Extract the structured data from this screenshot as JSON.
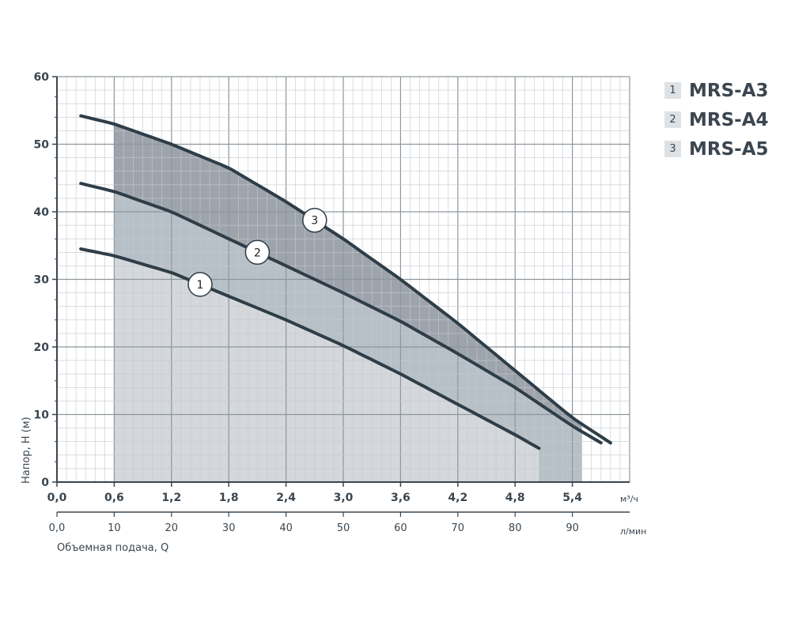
{
  "chart_data": {
    "type": "line",
    "xlabel": "Объемная подача, Q",
    "ylabel": "Напор, H (м)",
    "x_unit": "м³/ч",
    "x2_unit": "л/мин",
    "xlim": [
      0,
      6.0
    ],
    "ylim": [
      0,
      60
    ],
    "x_ticks": [
      "0,0",
      "0,6",
      "1,2",
      "1,8",
      "2,4",
      "3,0",
      "3,6",
      "4,2",
      "4,8",
      "5,4"
    ],
    "x2_ticks": [
      "0,0",
      "10",
      "20",
      "30",
      "40",
      "50",
      "60",
      "70",
      "80",
      "90"
    ],
    "y_ticks": [
      "0",
      "10",
      "20",
      "30",
      "40",
      "50",
      "60"
    ],
    "grid": true,
    "legend_position": "top-right",
    "series": [
      {
        "name": "MRS-A3",
        "number": "1",
        "color": "#2e3d47",
        "x": [
          0.25,
          0.6,
          1.2,
          1.8,
          2.4,
          3.0,
          3.6,
          4.2,
          4.8,
          5.05
        ],
        "y": [
          34.5,
          33.5,
          31.0,
          27.5,
          24.0,
          20.2,
          16.0,
          11.5,
          7.0,
          5.0
        ]
      },
      {
        "name": "MRS-A4",
        "number": "2",
        "color": "#2e3d47",
        "x": [
          0.25,
          0.6,
          1.2,
          1.8,
          2.4,
          3.0,
          3.6,
          4.2,
          4.8,
          5.4,
          5.7
        ],
        "y": [
          44.2,
          43.0,
          40.0,
          36.0,
          32.0,
          28.0,
          23.8,
          19.0,
          14.0,
          8.3,
          5.8
        ]
      },
      {
        "name": "MRS-A5",
        "number": "3",
        "color": "#2e3d47",
        "x": [
          0.25,
          0.6,
          1.2,
          1.8,
          2.4,
          3.0,
          3.6,
          4.2,
          4.8,
          5.4,
          5.8
        ],
        "y": [
          54.2,
          53.0,
          50.0,
          46.5,
          41.5,
          36.0,
          30.0,
          23.5,
          16.5,
          9.5,
          5.8
        ]
      }
    ],
    "shaded_range": [
      0.6,
      5.5
    ],
    "shade_colors": [
      "#d4d8dc",
      "#b7c0c7",
      "#9ea4ab"
    ],
    "markers": [
      {
        "label": "1",
        "x": 1.5
      },
      {
        "label": "2",
        "x": 2.1
      },
      {
        "label": "3",
        "x": 2.7
      }
    ]
  },
  "legend": [
    {
      "num": "1",
      "label": "MRS-A3"
    },
    {
      "num": "2",
      "label": "MRS-A4"
    },
    {
      "num": "3",
      "label": "MRS-A5"
    }
  ],
  "colors": {
    "axis": "#3b4650",
    "grid_minor": "#c5c9cd",
    "grid_major": "#8e969d",
    "legend_box": "#dfe2e5"
  }
}
